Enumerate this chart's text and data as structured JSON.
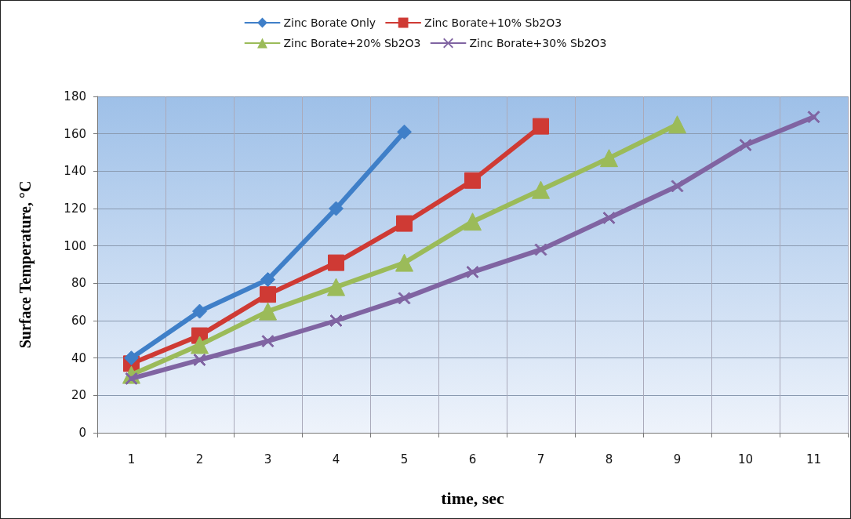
{
  "chart_data": {
    "type": "line",
    "xlabel": "time, sec",
    "ylabel": "Surface Temperature, °C",
    "categories": [
      "1",
      "2",
      "3",
      "4",
      "5",
      "6",
      "7",
      "8",
      "9",
      "10",
      "11"
    ],
    "ylim": [
      0,
      180
    ],
    "yticks": [
      0,
      20,
      40,
      60,
      80,
      100,
      120,
      140,
      160,
      180
    ],
    "grid": true,
    "legend": "top",
    "line_style": "solid",
    "series": [
      {
        "name": "Zinc Borate Only",
        "color": "#3f7fc8",
        "marker": "diamond",
        "values": [
          40,
          65,
          82,
          120,
          161,
          null,
          null,
          null,
          null,
          null,
          null
        ]
      },
      {
        "name": "Zinc Borate+10% Sb2O3",
        "color": "#cf3a34",
        "marker": "square",
        "values": [
          37,
          52,
          74,
          91,
          112,
          135,
          164,
          null,
          null,
          null,
          null
        ]
      },
      {
        "name": "Zinc Borate+20% Sb2O3",
        "color": "#9bbb59",
        "marker": "triangle",
        "values": [
          31,
          47,
          65,
          78,
          91,
          113,
          130,
          147,
          165,
          null,
          null
        ]
      },
      {
        "name": "Zinc Borate+30% Sb2O3",
        "color": "#8064a2",
        "marker": "cross",
        "values": [
          29,
          39,
          49,
          60,
          72,
          86,
          98,
          115,
          132,
          154,
          169
        ]
      }
    ]
  }
}
